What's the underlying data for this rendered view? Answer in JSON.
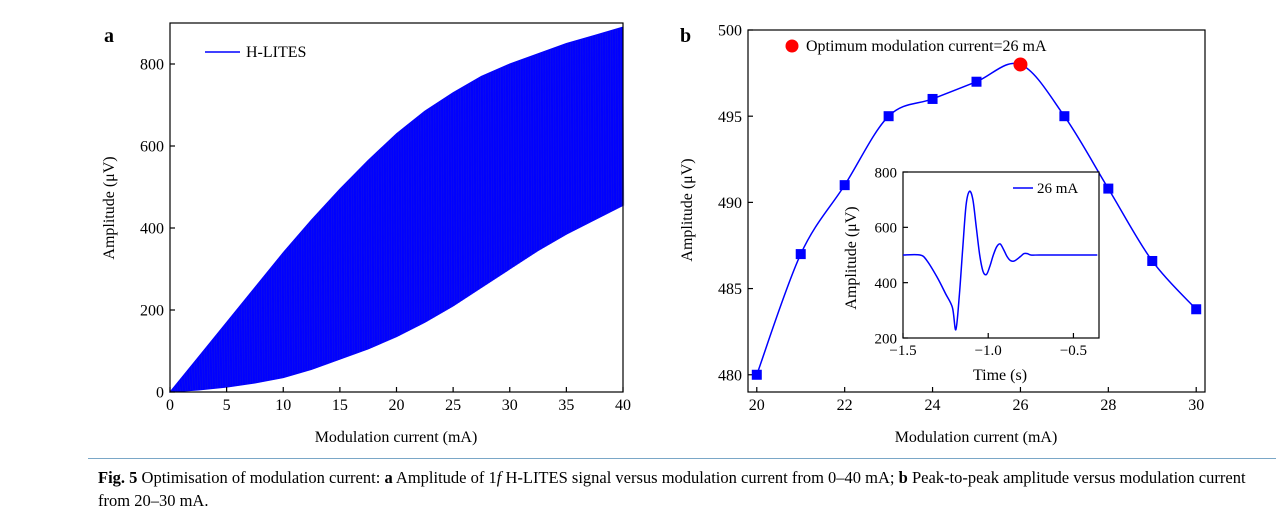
{
  "colors": {
    "series": "#0000ff",
    "optimum": "#ff0000",
    "axis": "#000000",
    "caption_rule": "#7aa7c7"
  },
  "chart_data": [
    {
      "panel_label": "a",
      "type": "area",
      "xlabel": "Modulation current (mA)",
      "ylabel": "Amplitude (μV)",
      "xlim": [
        0,
        40
      ],
      "ylim": [
        0,
        900
      ],
      "xticks": [
        0,
        5,
        10,
        15,
        20,
        25,
        30,
        35,
        40
      ],
      "yticks": [
        0,
        200,
        400,
        600,
        800
      ],
      "legend": {
        "position": "top-left",
        "entries": [
          "H-LITES"
        ]
      },
      "series": [
        {
          "name": "H-LITES",
          "x": [
            0,
            2.5,
            5,
            7.5,
            10,
            12.5,
            15,
            17.5,
            20,
            22.5,
            25,
            27.5,
            30,
            32.5,
            35,
            37.5,
            40
          ],
          "upper": [
            0,
            85,
            170,
            255,
            340,
            420,
            495,
            565,
            630,
            685,
            730,
            770,
            800,
            825,
            850,
            870,
            890
          ],
          "lower": [
            0,
            5,
            12,
            22,
            35,
            55,
            80,
            105,
            135,
            170,
            210,
            255,
            300,
            345,
            385,
            420,
            455
          ]
        }
      ]
    },
    {
      "panel_label": "b",
      "type": "line",
      "xlabel": "Modulation current (mA)",
      "ylabel": "Amplitude (μV)",
      "xlim": [
        19.8,
        30.2
      ],
      "ylim": [
        479,
        500
      ],
      "xticks": [
        20,
        22,
        24,
        26,
        28,
        30
      ],
      "yticks": [
        480,
        485,
        490,
        495,
        500
      ],
      "legend": {
        "position": "top-left",
        "entries": [
          "Optimum modulation current=26 mA"
        ]
      },
      "series": [
        {
          "x": [
            20,
            21,
            22,
            23,
            24,
            25,
            26,
            27,
            28,
            29,
            30
          ],
          "values": [
            480,
            487,
            491,
            495,
            496,
            497,
            498,
            495,
            490.8,
            486.6,
            483.8
          ]
        }
      ],
      "highlight": {
        "label": "Optimum modulation current=26 mA",
        "x": 26,
        "y": 498
      },
      "inset": {
        "type": "line",
        "xlabel": "Time (s)",
        "ylabel": "Amplitude (μV)",
        "xlim": [
          -1.5,
          -0.35
        ],
        "ylim": [
          200,
          800
        ],
        "xticks": [
          -1.5,
          -1.0,
          -0.5
        ],
        "xtick_labels": [
          "−1.5",
          "−1.0",
          "−0.5"
        ],
        "yticks": [
          200,
          400,
          600,
          800
        ],
        "legend": {
          "position": "top-right",
          "entries": [
            "26 mA"
          ]
        },
        "series": [
          {
            "name": "26 mA",
            "x": [
              -1.5,
              -1.4,
              -1.36,
              -1.3,
              -1.25,
              -1.21,
              -1.19,
              -1.17,
              -1.15,
              -1.13,
              -1.11,
              -1.09,
              -1.07,
              -1.05,
              -1.03,
              -1.01,
              -0.99,
              -0.97,
              -0.95,
              -0.93,
              -0.91,
              -0.89,
              -0.87,
              -0.85,
              -0.83,
              -0.81,
              -0.79,
              -0.77,
              -0.75,
              -0.7,
              -0.6,
              -0.5,
              -0.4,
              -0.36
            ],
            "values": [
              500,
              500,
              480,
              420,
              360,
              310,
              230,
              350,
              520,
              680,
              730,
              700,
              600,
              500,
              440,
              430,
              460,
              500,
              530,
              540,
              520,
              495,
              480,
              478,
              485,
              495,
              505,
              505,
              500,
              500,
              500,
              500,
              500,
              500
            ]
          }
        ]
      }
    }
  ],
  "caption": {
    "fig_label": "Fig. 5",
    "text_1": " Optimisation of modulation current: ",
    "label_a": "a",
    "text_2": " Amplitude of 1",
    "italic_f": "f",
    "text_3": " H-LITES signal versus modulation current from 0–40 mA; ",
    "label_b": "b",
    "text_4": " Peak-to-peak amplitude versus modulation current from 20–30 mA."
  }
}
